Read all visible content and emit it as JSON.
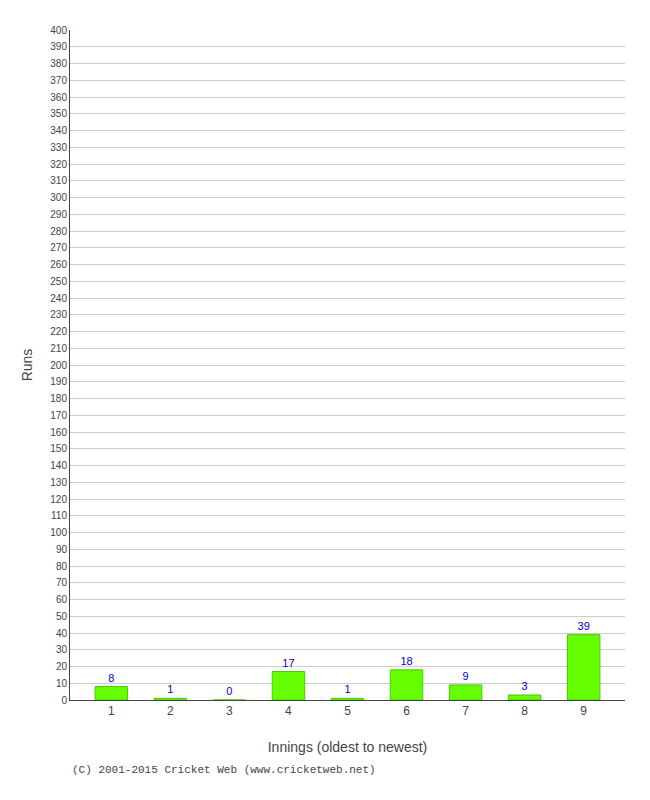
{
  "chart_data": {
    "type": "bar",
    "categories": [
      "1",
      "2",
      "3",
      "4",
      "5",
      "6",
      "7",
      "8",
      "9"
    ],
    "values": [
      8,
      1,
      0,
      17,
      1,
      18,
      9,
      3,
      39
    ],
    "color": "#66ff00",
    "xlabel": "Innings (oldest to newest)",
    "ylabel": "Runs",
    "ylim": [
      0,
      400
    ],
    "yticks": [
      0,
      10,
      20,
      30,
      40,
      50,
      60,
      70,
      80,
      90,
      100,
      110,
      120,
      130,
      140,
      150,
      160,
      170,
      180,
      190,
      200,
      210,
      220,
      230,
      240,
      250,
      260,
      270,
      280,
      290,
      300,
      310,
      320,
      330,
      340,
      350,
      360,
      370,
      380,
      390,
      400
    ],
    "grid": true,
    "data_labels": true,
    "annotations": [
      "(C) 2001-2015 Cricket Web (www.cricketweb.net)"
    ]
  }
}
